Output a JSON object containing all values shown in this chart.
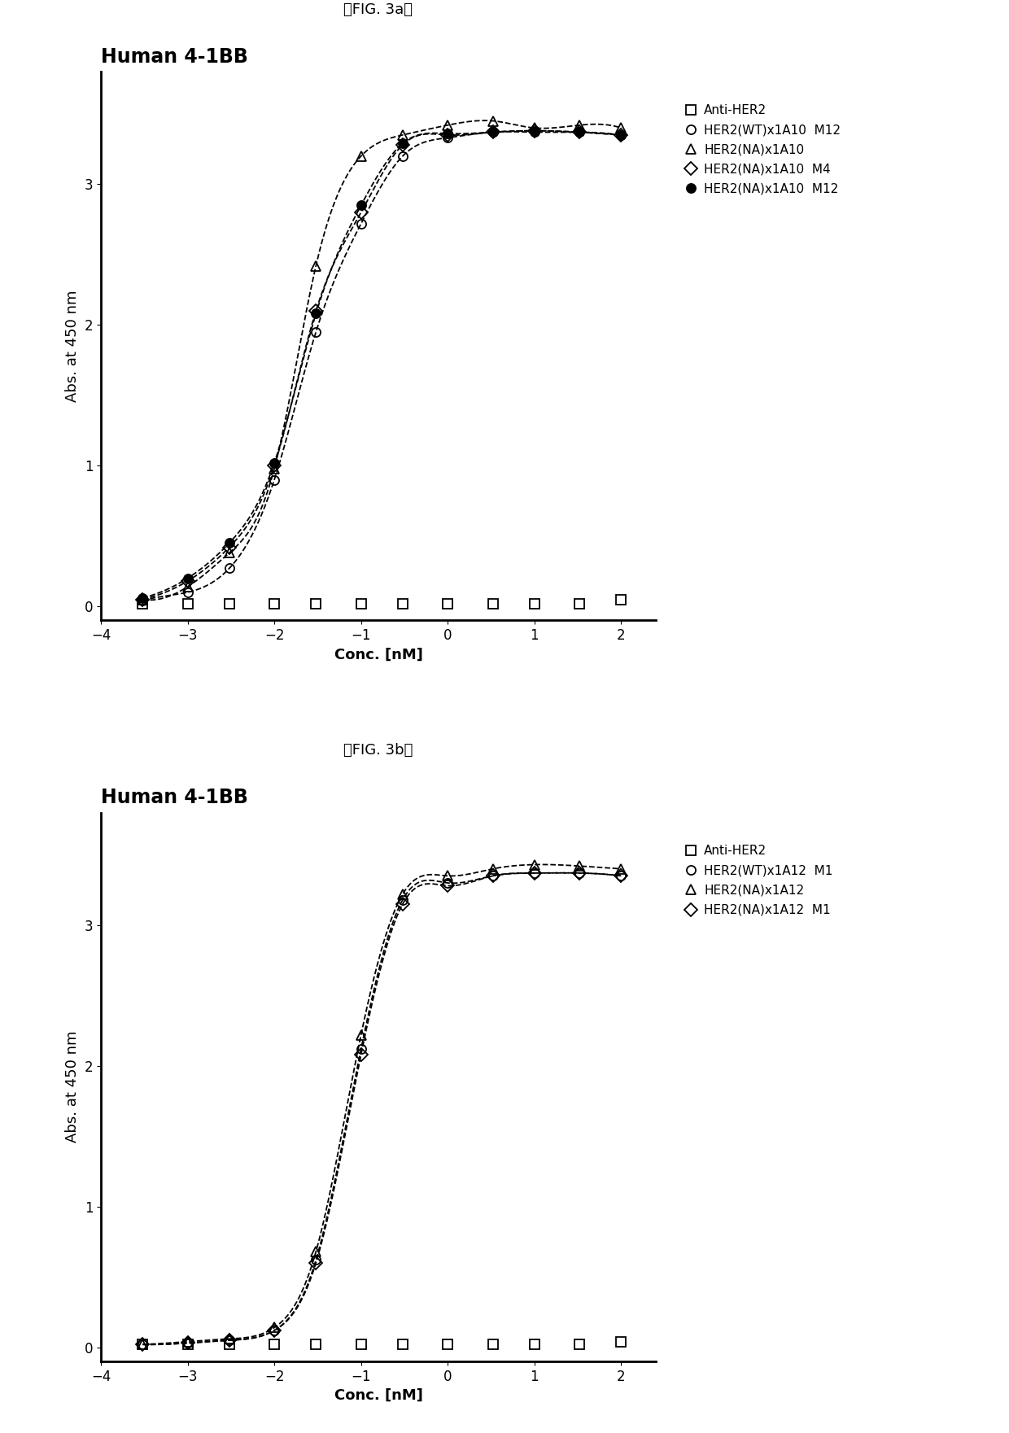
{
  "fig_label_a": "【FIG. 3a】",
  "fig_label_b": "【FIG. 3b】",
  "title_a": "Human 4-1BB",
  "title_b": "Human 4-1BB",
  "xlabel": "Conc. [nM]",
  "ylabel": "Abs. at 450 nm",
  "xlim": [
    -4,
    2.4
  ],
  "ylim_a": [
    -0.1,
    3.8
  ],
  "ylim_b": [
    -0.1,
    3.8
  ],
  "xticks": [
    -4,
    -3,
    -2,
    -1,
    0,
    1,
    2
  ],
  "yticks_a": [
    0,
    1,
    2,
    3
  ],
  "yticks_b": [
    0,
    1,
    2,
    3
  ],
  "panel_a": {
    "series": [
      {
        "label": "Anti-HER2",
        "marker": "s",
        "fillstyle": "none",
        "color": "#000000",
        "linestyle": "none",
        "x": [
          -3.52,
          -3.0,
          -2.52,
          -2.0,
          -1.52,
          -1.0,
          -0.52,
          0.0,
          0.52,
          1.0,
          1.52,
          2.0
        ],
        "y": [
          0.02,
          0.02,
          0.02,
          0.02,
          0.02,
          0.02,
          0.02,
          0.02,
          0.02,
          0.02,
          0.02,
          0.05
        ]
      },
      {
        "label": "HER2(WT)x1A10  M12",
        "marker": "o",
        "fillstyle": "none",
        "color": "#000000",
        "linestyle": "--",
        "x": [
          -3.52,
          -3.0,
          -2.52,
          -2.0,
          -1.52,
          -1.0,
          -0.52,
          0.0,
          0.52,
          1.0,
          1.52,
          2.0
        ],
        "y": [
          0.04,
          0.1,
          0.27,
          0.9,
          1.95,
          2.72,
          3.2,
          3.33,
          3.37,
          3.37,
          3.37,
          3.35
        ]
      },
      {
        "label": "HER2(NA)x1A10",
        "marker": "^",
        "fillstyle": "none",
        "color": "#000000",
        "linestyle": "--",
        "x": [
          -3.52,
          -3.0,
          -2.52,
          -2.0,
          -1.52,
          -1.0,
          -0.52,
          0.0,
          0.52,
          1.0,
          1.52,
          2.0
        ],
        "y": [
          0.05,
          0.14,
          0.38,
          0.98,
          2.42,
          3.2,
          3.35,
          3.42,
          3.45,
          3.4,
          3.42,
          3.4
        ]
      },
      {
        "label": "HER2(NA)x1A10  M4",
        "marker": "D",
        "fillstyle": "none",
        "color": "#000000",
        "linestyle": "--",
        "x": [
          -3.52,
          -3.0,
          -2.52,
          -2.0,
          -1.52,
          -1.0,
          -0.52,
          0.0,
          0.52,
          1.0,
          1.52,
          2.0
        ],
        "y": [
          0.05,
          0.18,
          0.42,
          1.0,
          2.1,
          2.8,
          3.28,
          3.35,
          3.37,
          3.38,
          3.37,
          3.35
        ]
      },
      {
        "label": "HER2(NA)x1A10  M12",
        "marker": "o",
        "fillstyle": "full",
        "color": "#000000",
        "linestyle": "--",
        "x": [
          -3.52,
          -3.0,
          -2.52,
          -2.0,
          -1.52,
          -1.0,
          -0.52,
          0.0,
          0.52,
          1.0,
          1.52,
          2.0
        ],
        "y": [
          0.06,
          0.2,
          0.45,
          1.02,
          2.08,
          2.85,
          3.29,
          3.36,
          3.37,
          3.38,
          3.37,
          3.35
        ]
      }
    ]
  },
  "panel_b": {
    "series": [
      {
        "label": "Anti-HER2",
        "marker": "s",
        "fillstyle": "none",
        "color": "#000000",
        "linestyle": "none",
        "x": [
          -3.52,
          -3.0,
          -2.52,
          -2.0,
          -1.52,
          -1.0,
          -0.52,
          0.0,
          0.52,
          1.0,
          1.52,
          2.0
        ],
        "y": [
          0.02,
          0.02,
          0.02,
          0.02,
          0.02,
          0.02,
          0.02,
          0.02,
          0.02,
          0.02,
          0.02,
          0.04
        ]
      },
      {
        "label": "HER2(WT)x1A12  M1",
        "marker": "o",
        "fillstyle": "none",
        "color": "#000000",
        "linestyle": "--",
        "x": [
          -3.52,
          -3.0,
          -2.52,
          -2.0,
          -1.52,
          -1.0,
          -0.52,
          0.0,
          0.52,
          1.0,
          1.52,
          2.0
        ],
        "y": [
          0.02,
          0.03,
          0.05,
          0.12,
          0.62,
          2.12,
          3.18,
          3.3,
          3.35,
          3.37,
          3.37,
          3.35
        ]
      },
      {
        "label": "HER2(NA)x1A12",
        "marker": "^",
        "fillstyle": "none",
        "color": "#000000",
        "linestyle": "--",
        "x": [
          -3.52,
          -3.0,
          -2.52,
          -2.0,
          -1.52,
          -1.0,
          -0.52,
          0.0,
          0.52,
          1.0,
          1.52,
          2.0
        ],
        "y": [
          0.02,
          0.04,
          0.06,
          0.14,
          0.68,
          2.22,
          3.22,
          3.35,
          3.4,
          3.43,
          3.42,
          3.4
        ]
      },
      {
        "label": "HER2(NA)x1A12  M1",
        "marker": "D",
        "fillstyle": "none",
        "color": "#000000",
        "linestyle": "--",
        "x": [
          -3.52,
          -3.0,
          -2.52,
          -2.0,
          -1.52,
          -1.0,
          -0.52,
          0.0,
          0.52,
          1.0,
          1.52,
          2.0
        ],
        "y": [
          0.02,
          0.03,
          0.05,
          0.12,
          0.6,
          2.08,
          3.15,
          3.28,
          3.35,
          3.37,
          3.37,
          3.35
        ]
      }
    ]
  },
  "background_color": "#ffffff",
  "text_color": "#000000",
  "fig_label_fontsize": 13,
  "title_fontsize": 17,
  "axis_label_fontsize": 13,
  "tick_fontsize": 12,
  "legend_fontsize": 11
}
